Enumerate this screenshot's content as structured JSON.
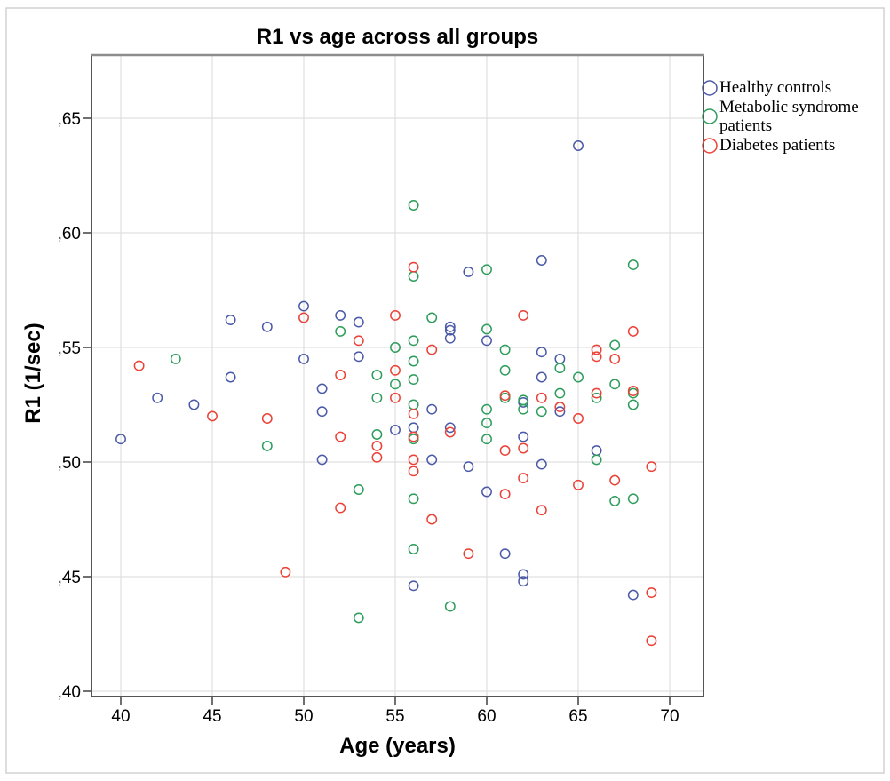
{
  "chart_data": {
    "type": "scatter",
    "title": "R1 vs age across all groups",
    "xlabel": "Age (years)",
    "ylabel": "R1 (1/sec)",
    "xlim": [
      38.4,
      71.9
    ],
    "ylim": [
      0.398,
      0.678
    ],
    "grid": true,
    "legend_position": "right",
    "x_ticks": {
      "values": [
        40,
        45,
        50,
        55,
        60,
        65,
        70
      ],
      "labels": [
        "40",
        "45",
        "50",
        "55",
        "60",
        "65",
        "70"
      ]
    },
    "y_ticks": {
      "values": [
        0.65,
        0.6,
        0.55,
        0.5,
        0.45,
        0.4
      ],
      "labels": [
        ",65",
        ",60",
        ",55",
        ",50",
        ",45",
        ",40"
      ]
    },
    "colors": {
      "grid": "#E0E0E0",
      "frame": "#444444",
      "frame_top": "#8C8C8C",
      "tick": "#333333",
      "text": "#000000",
      "figure_border": "#D2D2D2"
    },
    "series": [
      {
        "name": "Healthy controls",
        "color": "#4A5AA8",
        "points": [
          [
            40,
            0.51
          ],
          [
            42,
            0.528
          ],
          [
            44,
            0.525
          ],
          [
            46,
            0.562
          ],
          [
            46,
            0.537
          ],
          [
            48,
            0.559
          ],
          [
            50,
            0.568
          ],
          [
            50,
            0.545
          ],
          [
            51,
            0.532
          ],
          [
            51,
            0.522
          ],
          [
            51,
            0.501
          ],
          [
            52,
            0.564
          ],
          [
            53,
            0.561
          ],
          [
            53,
            0.546
          ],
          [
            55,
            0.514
          ],
          [
            56,
            0.515
          ],
          [
            56,
            0.446
          ],
          [
            57,
            0.523
          ],
          [
            57,
            0.501
          ],
          [
            58,
            0.559
          ],
          [
            58,
            0.5575
          ],
          [
            58,
            0.554
          ],
          [
            58,
            0.515
          ],
          [
            59,
            0.583
          ],
          [
            59,
            0.498
          ],
          [
            60,
            0.553
          ],
          [
            60,
            0.487
          ],
          [
            61,
            0.46
          ],
          [
            62,
            0.526
          ],
          [
            62,
            0.511
          ],
          [
            62,
            0.451
          ],
          [
            62,
            0.448
          ],
          [
            63,
            0.588
          ],
          [
            63,
            0.548
          ],
          [
            63,
            0.537
          ],
          [
            63,
            0.499
          ],
          [
            64,
            0.545
          ],
          [
            64,
            0.522
          ],
          [
            65,
            0.638
          ],
          [
            66,
            0.505
          ],
          [
            68,
            0.442
          ]
        ]
      },
      {
        "name": "Metabolic syndrome patients",
        "color": "#2E9D5C",
        "points": [
          [
            43,
            0.545
          ],
          [
            48,
            0.507
          ],
          [
            52,
            0.557
          ],
          [
            53,
            0.488
          ],
          [
            53,
            0.432
          ],
          [
            54,
            0.538
          ],
          [
            54,
            0.528
          ],
          [
            54,
            0.512
          ],
          [
            55,
            0.55
          ],
          [
            55,
            0.534
          ],
          [
            56,
            0.612
          ],
          [
            56,
            0.581
          ],
          [
            56,
            0.553
          ],
          [
            56,
            0.544
          ],
          [
            56,
            0.536
          ],
          [
            56,
            0.525
          ],
          [
            56,
            0.51
          ],
          [
            56,
            0.484
          ],
          [
            56,
            0.462
          ],
          [
            57,
            0.563
          ],
          [
            58,
            0.437
          ],
          [
            60,
            0.584
          ],
          [
            60,
            0.558
          ],
          [
            60,
            0.523
          ],
          [
            60,
            0.517
          ],
          [
            60,
            0.51
          ],
          [
            61,
            0.549
          ],
          [
            61,
            0.54
          ],
          [
            61,
            0.528
          ],
          [
            62,
            0.527
          ],
          [
            62,
            0.523
          ],
          [
            63,
            0.522
          ],
          [
            64,
            0.541
          ],
          [
            64,
            0.53
          ],
          [
            65,
            0.537
          ],
          [
            66,
            0.528
          ],
          [
            66,
            0.501
          ],
          [
            67,
            0.551
          ],
          [
            67,
            0.534
          ],
          [
            67,
            0.483
          ],
          [
            68,
            0.586
          ],
          [
            68,
            0.53
          ],
          [
            68,
            0.525
          ],
          [
            68,
            0.484
          ]
        ]
      },
      {
        "name": "Diabetes patients",
        "color": "#EC4137",
        "points": [
          [
            41,
            0.542
          ],
          [
            45,
            0.52
          ],
          [
            48,
            0.519
          ],
          [
            49,
            0.452
          ],
          [
            50,
            0.563
          ],
          [
            52,
            0.538
          ],
          [
            52,
            0.511
          ],
          [
            52,
            0.48
          ],
          [
            53,
            0.553
          ],
          [
            54,
            0.507
          ],
          [
            54,
            0.502
          ],
          [
            55,
            0.564
          ],
          [
            55,
            0.54
          ],
          [
            55,
            0.528
          ],
          [
            56,
            0.585
          ],
          [
            56,
            0.521
          ],
          [
            56,
            0.511
          ],
          [
            56,
            0.501
          ],
          [
            56,
            0.496
          ],
          [
            57,
            0.549
          ],
          [
            57,
            0.475
          ],
          [
            58,
            0.513
          ],
          [
            59,
            0.46
          ],
          [
            61,
            0.529
          ],
          [
            61,
            0.505
          ],
          [
            61,
            0.486
          ],
          [
            62,
            0.564
          ],
          [
            62,
            0.506
          ],
          [
            62,
            0.493
          ],
          [
            63,
            0.528
          ],
          [
            63,
            0.479
          ],
          [
            64,
            0.524
          ],
          [
            65,
            0.519
          ],
          [
            65,
            0.49
          ],
          [
            66,
            0.549
          ],
          [
            66,
            0.546
          ],
          [
            66,
            0.53
          ],
          [
            67,
            0.545
          ],
          [
            67,
            0.492
          ],
          [
            68,
            0.557
          ],
          [
            68,
            0.531
          ],
          [
            69,
            0.498
          ],
          [
            69,
            0.443
          ],
          [
            69,
            0.422
          ]
        ]
      }
    ]
  }
}
